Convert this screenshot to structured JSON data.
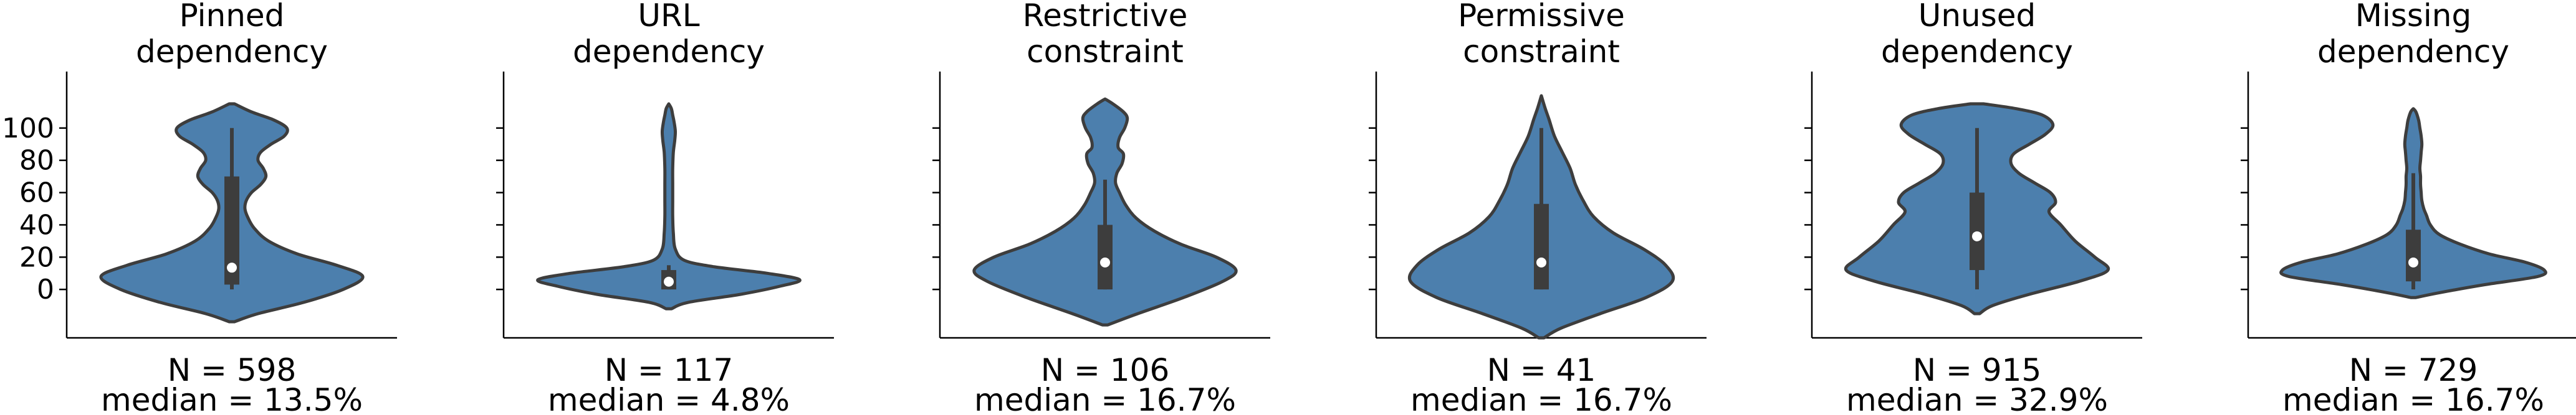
{
  "chart_data": {
    "type": "violin",
    "ylim": [
      -30,
      135
    ],
    "yticks": [
      0,
      20,
      40,
      60,
      80,
      100
    ],
    "ytick_labels": [
      "0",
      "20",
      "40",
      "60",
      "80",
      "100"
    ],
    "violin_color": "#4c7fad",
    "box_color": "#3d3d3d",
    "grid": false,
    "panels": [
      {
        "title": [
          "Pinned",
          "dependency"
        ],
        "n_label": "N = 598",
        "median_label": "median = 13.5%",
        "median": 13.5,
        "q1": 3,
        "q3": 70,
        "whisker_low": 0,
        "whisker_high": 100,
        "profile": [
          [
            -20,
            0.02
          ],
          [
            -15,
            0.2
          ],
          [
            -8,
            0.55
          ],
          [
            0,
            0.85
          ],
          [
            8,
            1.0
          ],
          [
            15,
            0.8
          ],
          [
            22,
            0.5
          ],
          [
            30,
            0.28
          ],
          [
            38,
            0.17
          ],
          [
            45,
            0.12
          ],
          [
            50,
            0.1
          ],
          [
            55,
            0.11
          ],
          [
            60,
            0.15
          ],
          [
            65,
            0.22
          ],
          [
            70,
            0.26
          ],
          [
            75,
            0.24
          ],
          [
            80,
            0.2
          ],
          [
            85,
            0.22
          ],
          [
            90,
            0.3
          ],
          [
            95,
            0.4
          ],
          [
            100,
            0.42
          ],
          [
            105,
            0.32
          ],
          [
            110,
            0.15
          ],
          [
            115,
            0.02
          ]
        ]
      },
      {
        "title": [
          "URL",
          "dependency"
        ],
        "n_label": "N = 117",
        "median_label": "median = 4.8%",
        "median": 4.8,
        "q1": 0,
        "q3": 12,
        "whisker_low": 0,
        "whisker_high": 15,
        "profile": [
          [
            -12,
            0.02
          ],
          [
            -8,
            0.15
          ],
          [
            -3,
            0.55
          ],
          [
            2,
            0.85
          ],
          [
            6,
            1.0
          ],
          [
            10,
            0.75
          ],
          [
            14,
            0.35
          ],
          [
            18,
            0.12
          ],
          [
            25,
            0.05
          ],
          [
            35,
            0.035
          ],
          [
            45,
            0.03
          ],
          [
            55,
            0.03
          ],
          [
            65,
            0.03
          ],
          [
            75,
            0.03
          ],
          [
            85,
            0.035
          ],
          [
            92,
            0.045
          ],
          [
            98,
            0.05
          ],
          [
            104,
            0.04
          ],
          [
            108,
            0.03
          ],
          [
            112,
            0.02
          ],
          [
            115,
            0.0
          ]
        ]
      },
      {
        "title": [
          "Restrictive",
          "constraint"
        ],
        "n_label": "N = 106",
        "median_label": "median = 16.7%",
        "median": 16.7,
        "q1": 0,
        "q3": 40,
        "whisker_low": 0,
        "whisker_high": 68,
        "profile": [
          [
            -22,
            0.02
          ],
          [
            -15,
            0.25
          ],
          [
            -5,
            0.6
          ],
          [
            5,
            0.9
          ],
          [
            12,
            1.0
          ],
          [
            20,
            0.85
          ],
          [
            28,
            0.58
          ],
          [
            36,
            0.38
          ],
          [
            44,
            0.24
          ],
          [
            52,
            0.16
          ],
          [
            60,
            0.11
          ],
          [
            66,
            0.08
          ],
          [
            72,
            0.09
          ],
          [
            78,
            0.13
          ],
          [
            84,
            0.14
          ],
          [
            88,
            0.1
          ],
          [
            94,
            0.11
          ],
          [
            100,
            0.15
          ],
          [
            106,
            0.17
          ],
          [
            110,
            0.14
          ],
          [
            115,
            0.06
          ],
          [
            118,
            0.0
          ]
        ]
      },
      {
        "title": [
          "Permissive",
          "constraint"
        ],
        "n_label": "N = 41",
        "median_label": "median = 16.7%",
        "median": 16.7,
        "q1": 0,
        "q3": 53,
        "whisker_low": 0,
        "whisker_high": 100,
        "profile": [
          [
            -30,
            0.02
          ],
          [
            -24,
            0.15
          ],
          [
            -15,
            0.45
          ],
          [
            -5,
            0.8
          ],
          [
            5,
            1.0
          ],
          [
            15,
            0.95
          ],
          [
            25,
            0.78
          ],
          [
            35,
            0.55
          ],
          [
            45,
            0.4
          ],
          [
            55,
            0.32
          ],
          [
            65,
            0.26
          ],
          [
            75,
            0.22
          ],
          [
            85,
            0.16
          ],
          [
            95,
            0.1
          ],
          [
            105,
            0.06
          ],
          [
            112,
            0.03
          ],
          [
            120,
            0.0
          ]
        ]
      },
      {
        "title": [
          "Unused",
          "dependency"
        ],
        "n_label": "N = 915",
        "median_label": "median = 32.9%",
        "median": 32.9,
        "q1": 12,
        "q3": 60,
        "whisker_low": 0,
        "whisker_high": 100,
        "profile": [
          [
            -15,
            0.02
          ],
          [
            -10,
            0.12
          ],
          [
            -3,
            0.4
          ],
          [
            5,
            0.78
          ],
          [
            12,
            1.0
          ],
          [
            20,
            0.9
          ],
          [
            30,
            0.75
          ],
          [
            40,
            0.64
          ],
          [
            48,
            0.55
          ],
          [
            54,
            0.6
          ],
          [
            60,
            0.56
          ],
          [
            66,
            0.44
          ],
          [
            72,
            0.32
          ],
          [
            78,
            0.26
          ],
          [
            84,
            0.28
          ],
          [
            90,
            0.4
          ],
          [
            96,
            0.52
          ],
          [
            102,
            0.58
          ],
          [
            108,
            0.5
          ],
          [
            112,
            0.3
          ],
          [
            115,
            0.05
          ]
        ]
      },
      {
        "title": [
          "Missing",
          "dependency"
        ],
        "n_label": "N = 729",
        "median_label": "median = 16.7%",
        "median": 16.7,
        "q1": 5,
        "q3": 37,
        "whisker_low": 0,
        "whisker_high": 72,
        "profile": [
          [
            -5,
            0.02
          ],
          [
            -2,
            0.2
          ],
          [
            3,
            0.55
          ],
          [
            8,
            0.95
          ],
          [
            12,
            1.0
          ],
          [
            17,
            0.85
          ],
          [
            22,
            0.58
          ],
          [
            28,
            0.36
          ],
          [
            34,
            0.2
          ],
          [
            40,
            0.13
          ],
          [
            46,
            0.1
          ],
          [
            50,
            0.08
          ],
          [
            55,
            0.065
          ],
          [
            60,
            0.06
          ],
          [
            65,
            0.055
          ],
          [
            70,
            0.055
          ],
          [
            75,
            0.05
          ],
          [
            80,
            0.055
          ],
          [
            85,
            0.06
          ],
          [
            90,
            0.065
          ],
          [
            95,
            0.06
          ],
          [
            100,
            0.05
          ],
          [
            105,
            0.04
          ],
          [
            110,
            0.02
          ],
          [
            112,
            0.0
          ]
        ]
      }
    ]
  }
}
